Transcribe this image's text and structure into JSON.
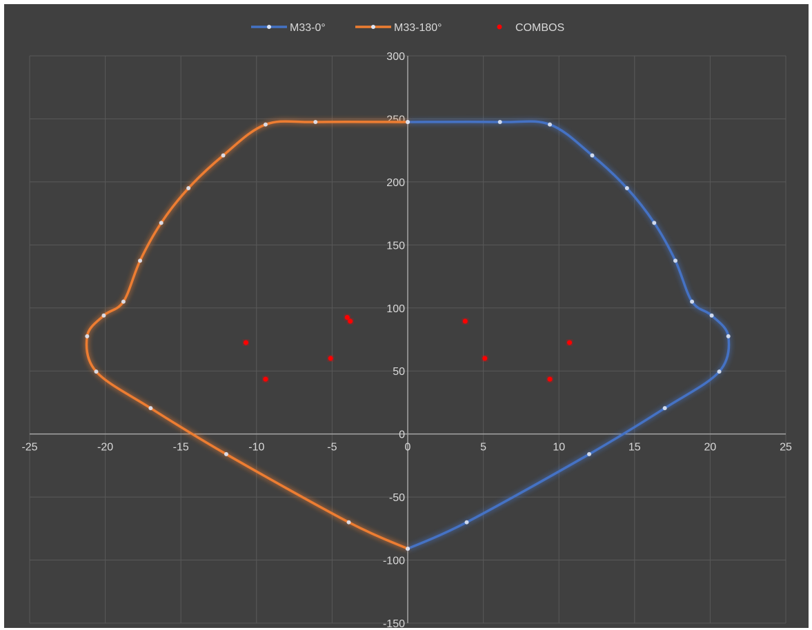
{
  "chart_data": {
    "type": "scatter",
    "title": "",
    "xlabel": "",
    "ylabel": "",
    "xlim": [
      -25,
      25
    ],
    "ylim": [
      -150,
      300
    ],
    "x_ticks": [
      -25,
      -20,
      -15,
      -10,
      -5,
      0,
      5,
      10,
      15,
      20,
      25
    ],
    "y_ticks": [
      -150,
      -100,
      -50,
      0,
      50,
      100,
      150,
      200,
      250,
      300
    ],
    "grid": true,
    "legend_position": "top",
    "colors": {
      "background": "#404040",
      "grid": "#595959",
      "axis": "#a6a6a6",
      "text": "#d9d9d9"
    },
    "series": [
      {
        "name": "M33-0°",
        "style": "smooth-line-markers",
        "color": "#4472c4",
        "points": [
          [
            0,
            247.5
          ],
          [
            6.1,
            247.5
          ],
          [
            9.4,
            245.5
          ],
          [
            12.2,
            221
          ],
          [
            14.5,
            195
          ],
          [
            16.3,
            167.5
          ],
          [
            17.7,
            137.5
          ],
          [
            18.8,
            105
          ],
          [
            20.1,
            94
          ],
          [
            21.2,
            77.5
          ],
          [
            20.6,
            49.5
          ],
          [
            17,
            20.5
          ],
          [
            12,
            -16
          ],
          [
            3.9,
            -70
          ],
          [
            0,
            -91
          ]
        ]
      },
      {
        "name": "M33-180°",
        "style": "smooth-line-markers",
        "color": "#ed7d31",
        "points": [
          [
            0,
            247.5
          ],
          [
            -6.1,
            247.5
          ],
          [
            -9.4,
            245.5
          ],
          [
            -12.2,
            221
          ],
          [
            -14.5,
            195
          ],
          [
            -16.3,
            167.5
          ],
          [
            -17.7,
            137.5
          ],
          [
            -18.8,
            105
          ],
          [
            -20.1,
            94
          ],
          [
            -21.2,
            77.5
          ],
          [
            -20.6,
            49.5
          ],
          [
            -17,
            20.5
          ],
          [
            -12,
            -16
          ],
          [
            -3.9,
            -70
          ],
          [
            0,
            -91
          ]
        ]
      },
      {
        "name": "COMBOS",
        "style": "markers",
        "color": "#ff0000",
        "points": [
          [
            -10.7,
            72.5
          ],
          [
            -9.4,
            43.5
          ],
          [
            -5.1,
            60
          ],
          [
            -4,
            92.5
          ],
          [
            -3.8,
            89.5
          ],
          [
            3.8,
            89.5
          ],
          [
            5.1,
            60
          ],
          [
            9.4,
            43.5
          ],
          [
            10.7,
            72.5
          ]
        ]
      }
    ]
  }
}
